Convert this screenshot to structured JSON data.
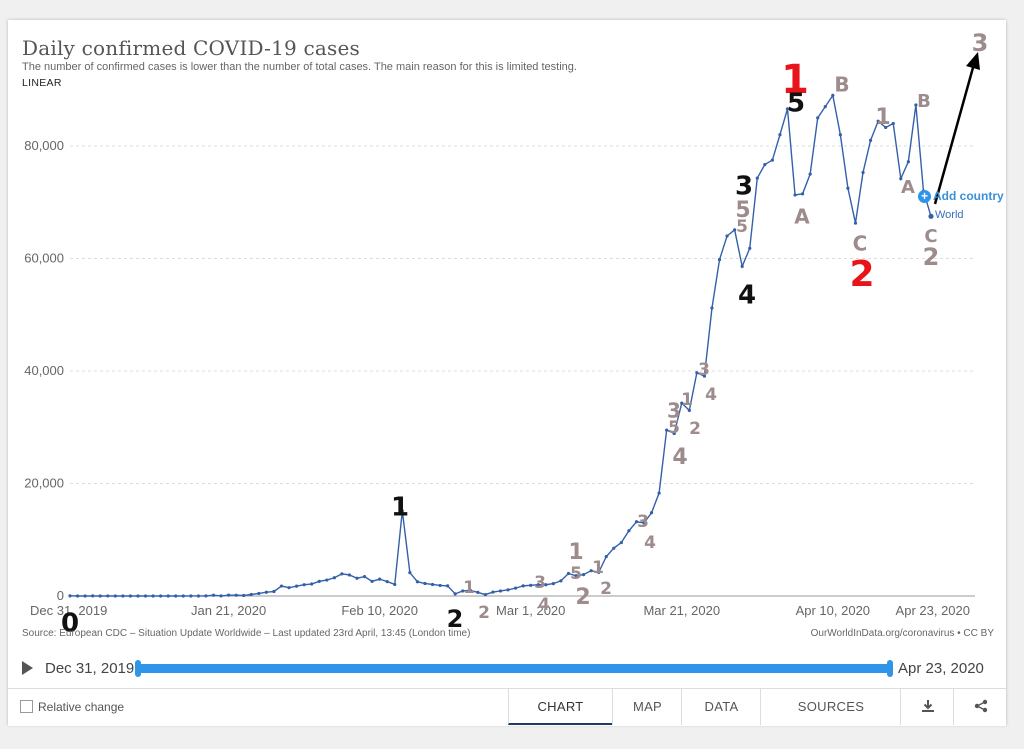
{
  "header": {
    "title": "Daily confirmed COVID-19 cases",
    "subtitle": "The number of confirmed cases is lower than the number of total cases. The main reason for this is limited testing.",
    "scale_toggle": "LINEAR"
  },
  "chart_data": {
    "type": "line",
    "title": "Daily confirmed COVID-19 cases",
    "xlabel": "",
    "ylabel": "",
    "ylim": [
      0,
      95000
    ],
    "y_ticks": [
      0,
      20000,
      40000,
      60000,
      80000
    ],
    "y_tick_labels": [
      "0",
      "20,000",
      "40,000",
      "60,000",
      "80,000"
    ],
    "x_tick_labels": [
      "Dec 31, 2019",
      "Jan 21, 2020",
      "Feb 10, 2020",
      "Mar 1, 2020",
      "Mar 21, 2020",
      "Apr 10, 2020",
      "Apr 23, 2020"
    ],
    "x_tick_dates": [
      "2019-12-31",
      "2020-01-21",
      "2020-02-10",
      "2020-03-01",
      "2020-03-21",
      "2020-04-10",
      "2020-04-23"
    ],
    "grid": true,
    "line_color": "#3360a9",
    "series": [
      {
        "name": "World",
        "x": [
          "2019-12-31",
          "2020-01-01",
          "2020-01-02",
          "2020-01-03",
          "2020-01-04",
          "2020-01-05",
          "2020-01-06",
          "2020-01-07",
          "2020-01-08",
          "2020-01-09",
          "2020-01-10",
          "2020-01-11",
          "2020-01-12",
          "2020-01-13",
          "2020-01-14",
          "2020-01-15",
          "2020-01-16",
          "2020-01-17",
          "2020-01-18",
          "2020-01-19",
          "2020-01-20",
          "2020-01-21",
          "2020-01-22",
          "2020-01-23",
          "2020-01-24",
          "2020-01-25",
          "2020-01-26",
          "2020-01-27",
          "2020-01-28",
          "2020-01-29",
          "2020-01-30",
          "2020-01-31",
          "2020-02-01",
          "2020-02-02",
          "2020-02-03",
          "2020-02-04",
          "2020-02-05",
          "2020-02-06",
          "2020-02-07",
          "2020-02-08",
          "2020-02-09",
          "2020-02-10",
          "2020-02-11",
          "2020-02-12",
          "2020-02-13",
          "2020-02-14",
          "2020-02-15",
          "2020-02-16",
          "2020-02-17",
          "2020-02-18",
          "2020-02-19",
          "2020-02-20",
          "2020-02-21",
          "2020-02-22",
          "2020-02-23",
          "2020-02-24",
          "2020-02-25",
          "2020-02-26",
          "2020-02-27",
          "2020-02-28",
          "2020-02-29",
          "2020-03-01",
          "2020-03-02",
          "2020-03-03",
          "2020-03-04",
          "2020-03-05",
          "2020-03-06",
          "2020-03-07",
          "2020-03-08",
          "2020-03-09",
          "2020-03-10",
          "2020-03-11",
          "2020-03-12",
          "2020-03-13",
          "2020-03-14",
          "2020-03-15",
          "2020-03-16",
          "2020-03-17",
          "2020-03-18",
          "2020-03-19",
          "2020-03-20",
          "2020-03-21",
          "2020-03-22",
          "2020-03-23",
          "2020-03-24",
          "2020-03-25",
          "2020-03-26",
          "2020-03-27",
          "2020-03-28",
          "2020-03-29",
          "2020-03-30",
          "2020-03-31",
          "2020-04-01",
          "2020-04-02",
          "2020-04-03",
          "2020-04-04",
          "2020-04-05",
          "2020-04-06",
          "2020-04-07",
          "2020-04-08",
          "2020-04-09",
          "2020-04-10",
          "2020-04-11",
          "2020-04-12",
          "2020-04-13",
          "2020-04-14",
          "2020-04-15",
          "2020-04-16",
          "2020-04-17",
          "2020-04-18",
          "2020-04-19",
          "2020-04-20",
          "2020-04-21",
          "2020-04-22",
          "2020-04-23"
        ],
        "y": [
          27,
          0,
          0,
          17,
          0,
          15,
          0,
          0,
          0,
          0,
          0,
          0,
          0,
          0,
          0,
          0,
          4,
          4,
          17,
          136,
          20,
          152,
          142,
          97,
          266,
          453,
          673,
          797,
          1767,
          1480,
          1755,
          2005,
          2127,
          2603,
          2837,
          3239,
          3928,
          3744,
          3160,
          3445,
          2611,
          2997,
          2562,
          2055,
          15141,
          4152,
          2538,
          2222,
          2047,
          1880,
          1800,
          380,
          900,
          1000,
          640,
          250,
          700,
          900,
          1100,
          1400,
          1800,
          1900,
          2000,
          2000,
          2200,
          2700,
          4000,
          3600,
          3800,
          4500,
          4200,
          7000,
          8500,
          9500,
          11600,
          13200,
          13000,
          14800,
          18300,
          29500,
          28900,
          34300,
          33000,
          39700,
          39100,
          51200,
          59800,
          64000,
          65100,
          58600,
          61800,
          74300,
          76700,
          77500,
          82000,
          86600,
          71300,
          71500,
          75000,
          85000,
          87000,
          89000,
          82000,
          72500,
          66300,
          75300,
          81000,
          84400,
          83300,
          84000,
          74200,
          77200,
          87300,
          72000,
          67500
        ]
      }
    ]
  },
  "annotations": [
    {
      "text": "0",
      "color": "#111111",
      "size": 26
    },
    {
      "text": "1",
      "color": "#111111",
      "size": 26
    },
    {
      "text": "2",
      "color": "#111111",
      "size": 24
    },
    {
      "text": "1",
      "color": "#9e8c8c",
      "size": 17
    },
    {
      "text": "2",
      "color": "#9e8c8c",
      "size": 17
    },
    {
      "text": "3",
      "color": "#9e8c8c",
      "size": 17
    },
    {
      "text": "4",
      "color": "#9e8c8c",
      "size": 17
    },
    {
      "text": "1",
      "color": "#9e8c8c",
      "size": 22
    },
    {
      "text": "5",
      "color": "#9e8c8c",
      "size": 17
    },
    {
      "text": "2",
      "color": "#9e8c8c",
      "size": 22
    },
    {
      "text": "1",
      "color": "#9e8c8c",
      "size": 17
    },
    {
      "text": "2",
      "color": "#9e8c8c",
      "size": 17
    },
    {
      "text": "3",
      "color": "#9e8c8c",
      "size": 17
    },
    {
      "text": "4",
      "color": "#9e8c8c",
      "size": 17
    },
    {
      "text": "3",
      "color": "#9e8c8c",
      "size": 20
    },
    {
      "text": "5",
      "color": "#9e8c8c",
      "size": 17
    },
    {
      "text": "4",
      "color": "#9e8c8c",
      "size": 22
    },
    {
      "text": "1",
      "color": "#9e8c8c",
      "size": 17
    },
    {
      "text": "2",
      "color": "#9e8c8c",
      "size": 17
    },
    {
      "text": "3",
      "color": "#9e8c8c",
      "size": 17
    },
    {
      "text": "4",
      "color": "#9e8c8c",
      "size": 17
    },
    {
      "text": "3",
      "color": "#111111",
      "size": 26
    },
    {
      "text": "5",
      "color": "#9e8c8c",
      "size": 22
    },
    {
      "text": "5",
      "color": "#9e8c8c",
      "size": 17
    },
    {
      "text": "4",
      "color": "#111111",
      "size": 26
    },
    {
      "text": "1",
      "color": "#e8141a",
      "size": 40
    },
    {
      "text": "5",
      "color": "#111111",
      "size": 26
    },
    {
      "text": "A",
      "color": "#9e8c8c",
      "size": 20
    },
    {
      "text": "B",
      "color": "#9e8c8c",
      "size": 20
    },
    {
      "text": "C",
      "color": "#9e8c8c",
      "size": 20
    },
    {
      "text": "2",
      "color": "#e8141a",
      "size": 36
    },
    {
      "text": "1",
      "color": "#9e8c8c",
      "size": 22
    },
    {
      "text": "A",
      "color": "#9e8c8c",
      "size": 18
    },
    {
      "text": "B",
      "color": "#9e8c8c",
      "size": 18
    },
    {
      "text": "C",
      "color": "#9e8c8c",
      "size": 18
    },
    {
      "text": "2",
      "color": "#9e8c8c",
      "size": 24
    },
    {
      "text": "3",
      "color": "#9e8c8c",
      "size": 24
    }
  ],
  "legend": {
    "add_country": "Add country",
    "series_label": "World"
  },
  "footer": {
    "source": "Source: European CDC – Situation Update Worldwide – Last updated 23rd April, 13:45 (London time)",
    "credit": "OurWorldInData.org/coronavirus • CC BY"
  },
  "timeline": {
    "start": "Dec 31, 2019",
    "end": "Apr 23, 2020",
    "color": "#2f95e8"
  },
  "controls": {
    "relative_change": "Relative change",
    "tabs": [
      "CHART",
      "MAP",
      "DATA",
      "SOURCES"
    ],
    "download_icon": "download-icon",
    "share_icon": "share-icon"
  }
}
